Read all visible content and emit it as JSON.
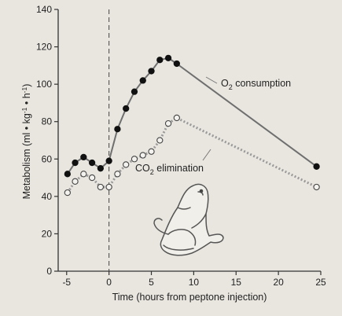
{
  "chart_data": {
    "type": "line",
    "xlabel": "Time (hours from peptone injection)",
    "ylabel": "Metabolism (ml • kg",
    "ylabel_sup1": "-1",
    "ylabel_mid": " • h",
    "ylabel_sup2": "-1",
    "ylabel_end": ")",
    "xlim": [
      -6,
      25
    ],
    "ylim": [
      0,
      140
    ],
    "xticks": [
      -5,
      0,
      5,
      10,
      15,
      20,
      25
    ],
    "xtick_labels": [
      "-5",
      "0",
      "5",
      "10",
      "15",
      "20",
      "25"
    ],
    "yticks": [
      0,
      20,
      40,
      60,
      80,
      100,
      120,
      140
    ],
    "ytick_labels": [
      "0",
      "20",
      "40",
      "60",
      "80",
      "100",
      "120",
      "140"
    ],
    "injection_marker_x": 0,
    "grid": false,
    "series": [
      {
        "label_main": "O",
        "label_sub": "2",
        "label_rest": " consumption",
        "marker": "filled-circle",
        "line_color": "#6f6f6f",
        "points": [
          [
            -4.9,
            52
          ],
          [
            -4.0,
            58
          ],
          [
            -3.0,
            61
          ],
          [
            -2.0,
            58
          ],
          [
            -1.0,
            55
          ],
          [
            0.0,
            59
          ],
          [
            1.0,
            76
          ],
          [
            2.0,
            87
          ],
          [
            3.0,
            96
          ],
          [
            4.0,
            102
          ],
          [
            5.0,
            107
          ],
          [
            6.0,
            113
          ],
          [
            7.0,
            114
          ],
          [
            8.0,
            111
          ],
          [
            24.5,
            56
          ]
        ]
      },
      {
        "label_main": "CO",
        "label_sub": "2",
        "label_rest": " elimination",
        "marker": "open-circle",
        "line_color": "#9a9a9a",
        "line_style": "dotted",
        "points": [
          [
            -4.9,
            42
          ],
          [
            -4.0,
            48
          ],
          [
            -3.0,
            52
          ],
          [
            -2.0,
            50
          ],
          [
            -1.0,
            45
          ],
          [
            0.0,
            45
          ],
          [
            1.0,
            52
          ],
          [
            2.0,
            57
          ],
          [
            3.0,
            60
          ],
          [
            4.0,
            62
          ],
          [
            5.0,
            64
          ],
          [
            6.0,
            70
          ],
          [
            7.0,
            79
          ],
          [
            8.0,
            82
          ],
          [
            24.5,
            45
          ]
        ]
      }
    ]
  }
}
